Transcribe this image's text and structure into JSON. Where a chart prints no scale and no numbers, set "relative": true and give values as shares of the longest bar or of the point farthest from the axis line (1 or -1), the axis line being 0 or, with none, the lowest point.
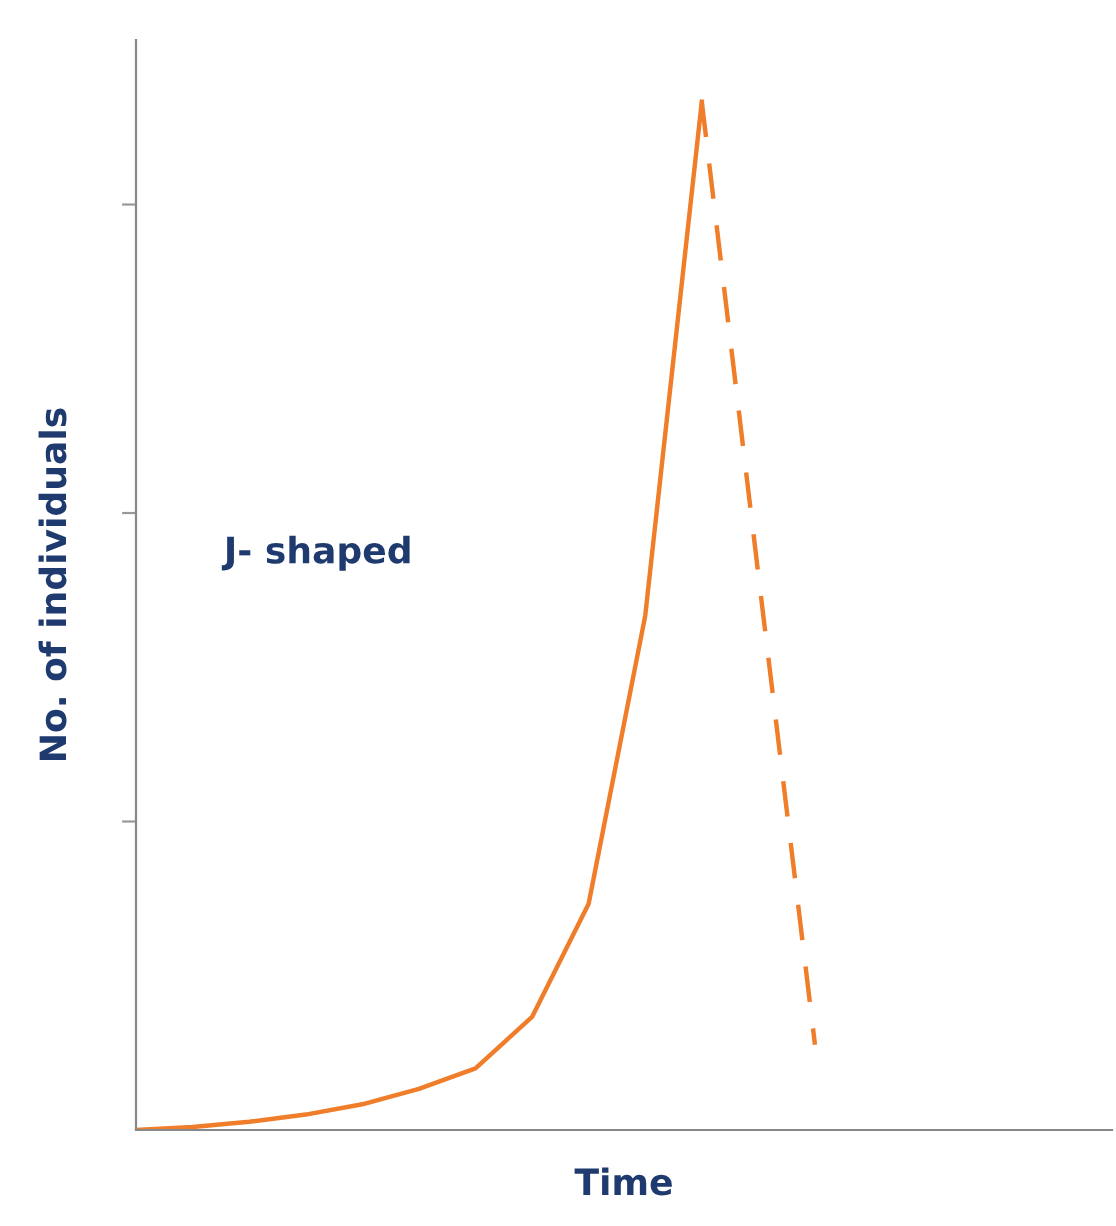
{
  "chart_data": {
    "type": "line",
    "relative": true,
    "xlabel": "Time",
    "ylabel": "No. of individuals",
    "annotations": [
      "J- shaped"
    ],
    "categories": [
      null,
      null,
      null,
      null,
      null,
      null,
      null,
      null,
      null,
      null,
      null,
      null,
      null,
      null,
      null,
      null,
      null,
      null
    ],
    "series": [
      {
        "color": "#f07d2a",
        "line_style": "solid",
        "values": [
          0,
          0.003,
          0.008,
          0.015,
          0.025,
          0.04,
          0.06,
          0.11,
          0.22,
          0.5,
          1,
          null,
          null,
          null,
          null,
          null,
          null,
          null
        ]
      },
      {
        "color": "#f07d2a",
        "line_style": "dashed",
        "values": [
          null,
          null,
          null,
          null,
          null,
          null,
          null,
          null,
          null,
          null,
          1,
          0.54,
          0.083,
          null,
          null,
          null,
          null,
          null
        ]
      }
    ],
    "grid": false,
    "legend": false
  }
}
